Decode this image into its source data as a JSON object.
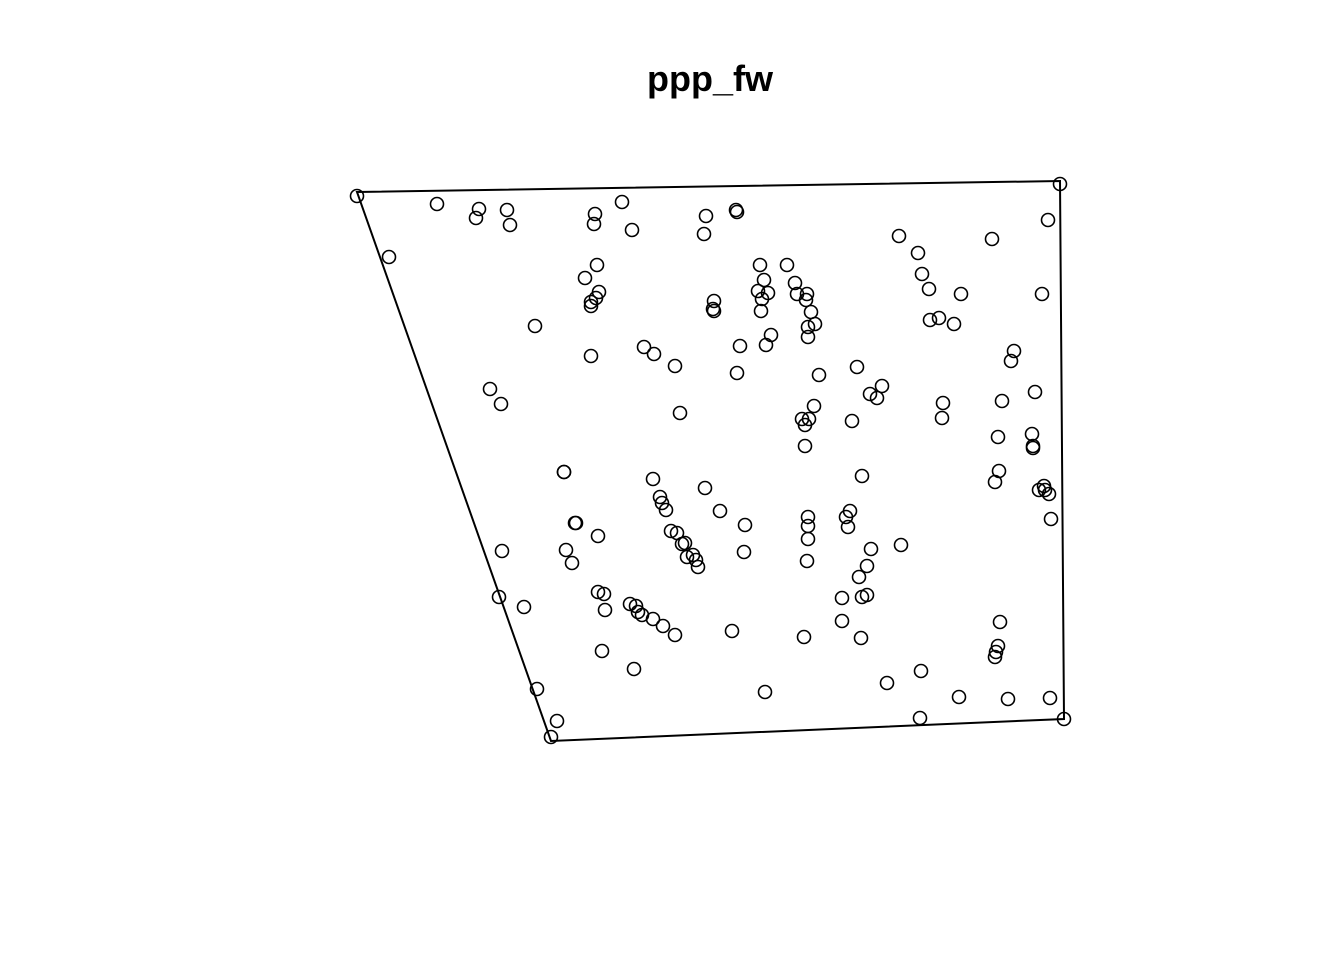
{
  "chart_data": {
    "type": "scatter",
    "title": "ppp_fw",
    "xlabel": "",
    "ylabel": "",
    "axes_shown": false,
    "grid": false,
    "marker": "open-circle",
    "colors": {
      "points": "#000000",
      "window": "#000000",
      "background": "#ffffff"
    },
    "window_vertices": [
      [
        357,
        192
      ],
      [
        1060,
        181
      ],
      [
        1064,
        719
      ],
      [
        551,
        741
      ]
    ],
    "points": [
      [
        357,
        196
      ],
      [
        437,
        204
      ],
      [
        479,
        209
      ],
      [
        476,
        218
      ],
      [
        507,
        210
      ],
      [
        510,
        225
      ],
      [
        389,
        257
      ],
      [
        535,
        326
      ],
      [
        490,
        389
      ],
      [
        501,
        404
      ],
      [
        564,
        472
      ],
      [
        595,
        214
      ],
      [
        594,
        224
      ],
      [
        622,
        202
      ],
      [
        632,
        230
      ],
      [
        597,
        265
      ],
      [
        585,
        278
      ],
      [
        599,
        292
      ],
      [
        596,
        298
      ],
      [
        591,
        302
      ],
      [
        591,
        306
      ],
      [
        591,
        356
      ],
      [
        644,
        347
      ],
      [
        654,
        354
      ],
      [
        675,
        366
      ],
      [
        680,
        413
      ],
      [
        706,
        216
      ],
      [
        704,
        234
      ],
      [
        736,
        210
      ],
      [
        737,
        212
      ],
      [
        714,
        301
      ],
      [
        713,
        309
      ],
      [
        714,
        311
      ],
      [
        740,
        346
      ],
      [
        737,
        373
      ],
      [
        760,
        265
      ],
      [
        764,
        280
      ],
      [
        758,
        291
      ],
      [
        768,
        293
      ],
      [
        762,
        299
      ],
      [
        761,
        311
      ],
      [
        771,
        335
      ],
      [
        766,
        345
      ],
      [
        787,
        265
      ],
      [
        795,
        283
      ],
      [
        797,
        294
      ],
      [
        807,
        294
      ],
      [
        806,
        300
      ],
      [
        811,
        312
      ],
      [
        808,
        327
      ],
      [
        815,
        324
      ],
      [
        808,
        337
      ],
      [
        819,
        375
      ],
      [
        857,
        367
      ],
      [
        870,
        394
      ],
      [
        882,
        386
      ],
      [
        877,
        398
      ],
      [
        814,
        406
      ],
      [
        802,
        419
      ],
      [
        809,
        419
      ],
      [
        805,
        425
      ],
      [
        852,
        421
      ],
      [
        805,
        446
      ],
      [
        899,
        236
      ],
      [
        918,
        253
      ],
      [
        922,
        274
      ],
      [
        929,
        289
      ],
      [
        961,
        294
      ],
      [
        930,
        320
      ],
      [
        939,
        318
      ],
      [
        954,
        324
      ],
      [
        992,
        239
      ],
      [
        1048,
        220
      ],
      [
        1042,
        294
      ],
      [
        1014,
        351
      ],
      [
        1011,
        361
      ],
      [
        1035,
        392
      ],
      [
        1002,
        401
      ],
      [
        943,
        403
      ],
      [
        942,
        418
      ],
      [
        998,
        437
      ],
      [
        1032,
        434
      ],
      [
        1033,
        446
      ],
      [
        1033,
        448
      ],
      [
        999,
        471
      ],
      [
        995,
        482
      ],
      [
        1044,
        486
      ],
      [
        1039,
        490
      ],
      [
        1045,
        490
      ],
      [
        1049,
        494
      ],
      [
        1051,
        519
      ],
      [
        1060,
        184
      ],
      [
        862,
        476
      ],
      [
        850,
        511
      ],
      [
        846,
        517
      ],
      [
        848,
        527
      ],
      [
        808,
        517
      ],
      [
        808,
        526
      ],
      [
        808,
        539
      ],
      [
        807,
        561
      ],
      [
        871,
        549
      ],
      [
        867,
        566
      ],
      [
        859,
        577
      ],
      [
        842,
        598
      ],
      [
        862,
        597
      ],
      [
        867,
        595
      ],
      [
        842,
        621
      ],
      [
        861,
        638
      ],
      [
        901,
        545
      ],
      [
        804,
        637
      ],
      [
        653,
        479
      ],
      [
        660,
        497
      ],
      [
        662,
        503
      ],
      [
        666,
        510
      ],
      [
        671,
        531
      ],
      [
        677,
        533
      ],
      [
        682,
        544
      ],
      [
        685,
        543
      ],
      [
        687,
        557
      ],
      [
        693,
        555
      ],
      [
        696,
        560
      ],
      [
        698,
        567
      ],
      [
        705,
        488
      ],
      [
        720,
        511
      ],
      [
        745,
        525
      ],
      [
        744,
        552
      ],
      [
        732,
        631
      ],
      [
        765,
        692
      ],
      [
        564,
        472
      ],
      [
        575,
        523
      ],
      [
        576,
        523
      ],
      [
        566,
        550
      ],
      [
        572,
        563
      ],
      [
        598,
        536
      ],
      [
        598,
        592
      ],
      [
        604,
        594
      ],
      [
        605,
        610
      ],
      [
        630,
        604
      ],
      [
        636,
        606
      ],
      [
        638,
        612
      ],
      [
        642,
        615
      ],
      [
        653,
        619
      ],
      [
        663,
        626
      ],
      [
        675,
        635
      ],
      [
        602,
        651
      ],
      [
        634,
        669
      ],
      [
        502,
        551
      ],
      [
        499,
        597
      ],
      [
        524,
        607
      ],
      [
        537,
        689
      ],
      [
        557,
        721
      ],
      [
        551,
        737
      ],
      [
        887,
        683
      ],
      [
        921,
        671
      ],
      [
        920,
        718
      ],
      [
        959,
        697
      ],
      [
        1000,
        622
      ],
      [
        998,
        646
      ],
      [
        996,
        652
      ],
      [
        995,
        657
      ],
      [
        1008,
        699
      ],
      [
        1050,
        698
      ],
      [
        1064,
        719
      ]
    ]
  }
}
